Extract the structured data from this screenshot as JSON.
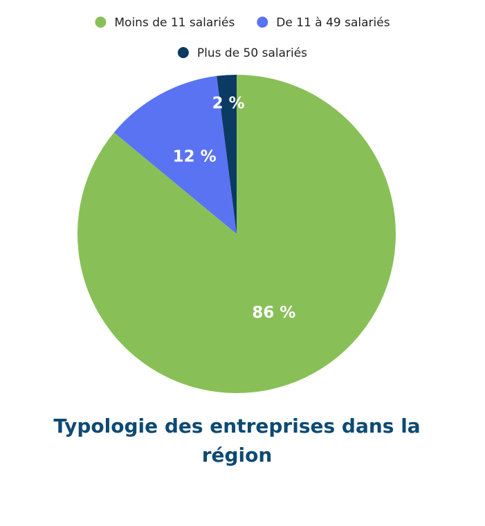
{
  "chart_data": {
    "type": "pie",
    "title": "Typologie des entreprises dans la région",
    "legend_position": "top",
    "categories": [
      "Moins de 11 salariés",
      "De 11 à 49 salariés",
      "Plus de 50 salariés"
    ],
    "values": [
      86,
      12,
      2
    ],
    "labels": [
      "86 %",
      "12 %",
      "2 %"
    ],
    "colors": [
      "#88c057",
      "#5a73f2",
      "#0b3a62"
    ]
  },
  "colors": {
    "title": "#0d4a73",
    "slice_label": "#ffffff",
    "legend_text": "#222222"
  }
}
